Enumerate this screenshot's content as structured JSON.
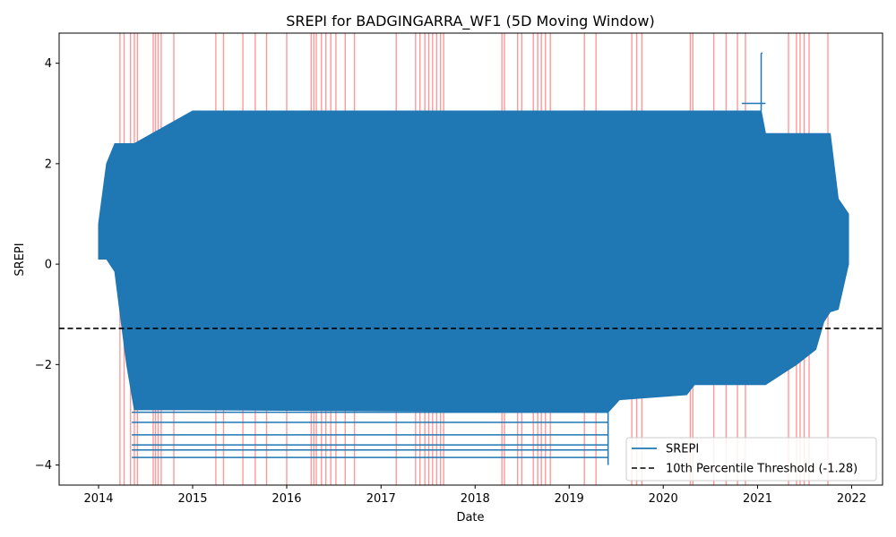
{
  "chart_data": {
    "type": "line",
    "title": "SREPI for BADGINGARRA_WF1 (5D Moving Window)",
    "xlabel": "Date",
    "ylabel": "SREPI",
    "xlim": [
      "2013-08-01",
      "2022-05-01"
    ],
    "ylim": [
      -4.4,
      4.6
    ],
    "x_ticks": [
      "2014-01-01",
      "2015-01-01",
      "2016-01-01",
      "2017-01-01",
      "2018-01-01",
      "2019-01-01",
      "2020-01-01",
      "2021-01-01",
      "2022-01-01"
    ],
    "x_tick_labels": [
      "2014",
      "2015",
      "2016",
      "2017",
      "2018",
      "2019",
      "2020",
      "2021",
      "2022"
    ],
    "y_ticks": [
      -4,
      -2,
      0,
      2,
      4
    ],
    "y_tick_labels": [
      "−4",
      "−2",
      "0",
      "2",
      "4"
    ],
    "threshold": {
      "value": -1.28,
      "label": "10th Percentile Threshold (-1.28)",
      "color": "#000000",
      "style": "dashed"
    },
    "series": [
      {
        "name": "SREPI",
        "color": "#1f77b4"
      }
    ],
    "srepi_band": [
      {
        "x": "2014-01-01",
        "low": 0.1,
        "high": 0.8
      },
      {
        "x": "2014-02-01",
        "low": 0.1,
        "high": 2.0
      },
      {
        "x": "2014-03-05",
        "low": -0.15,
        "high": 2.4
      },
      {
        "x": "2014-04-20",
        "low": -2.0,
        "high": 2.4
      },
      {
        "x": "2014-05-20",
        "low": -2.9,
        "high": 2.4
      },
      {
        "x": "2015-01-01",
        "low": -2.9,
        "high": 3.05
      },
      {
        "x": "2019-06-01",
        "low": -2.95,
        "high": 3.05
      },
      {
        "x": "2019-07-15",
        "low": -2.7,
        "high": 3.05
      },
      {
        "x": "2020-04-01",
        "low": -2.6,
        "high": 3.05
      },
      {
        "x": "2020-05-01",
        "low": -2.4,
        "high": 3.05
      },
      {
        "x": "2021-01-15",
        "low": -2.4,
        "high": 3.05
      },
      {
        "x": "2021-02-01",
        "low": -2.4,
        "high": 2.6
      },
      {
        "x": "2021-06-01",
        "low": -2.0,
        "high": 2.6
      },
      {
        "x": "2021-08-15",
        "low": -1.7,
        "high": 2.6
      },
      {
        "x": "2021-09-15",
        "low": -1.15,
        "high": 2.6
      },
      {
        "x": "2021-10-10",
        "low": -0.95,
        "high": 2.6
      },
      {
        "x": "2021-11-10",
        "low": -0.9,
        "high": 1.3
      },
      {
        "x": "2021-12-20",
        "low": 0.0,
        "high": 1.0
      }
    ],
    "srepi_lows": [
      {
        "from": "2014-05-10",
        "to": "2019-06-01",
        "value": -2.95
      },
      {
        "from": "2014-05-10",
        "to": "2019-06-01",
        "value": -3.15
      },
      {
        "from": "2014-05-10",
        "to": "2019-06-01",
        "value": -3.4
      },
      {
        "from": "2014-05-10",
        "to": "2019-06-01",
        "value": -3.6
      },
      {
        "from": "2014-05-10",
        "to": "2019-06-01",
        "value": -3.7
      },
      {
        "from": "2014-05-10",
        "to": "2019-06-01",
        "value": -3.85
      },
      {
        "from": "2014-05-15",
        "to": "2014-07-15",
        "value": -2.2
      },
      {
        "from": "2014-05-15",
        "to": "2014-07-01",
        "value": -2.45
      }
    ],
    "srepi_highs": [
      {
        "from": "2015-01-01",
        "to": "2018-01-01",
        "value": 2.7
      },
      {
        "from": "2020-11-01",
        "to": "2021-02-01",
        "value": 3.2
      },
      {
        "from": "2021-01-15",
        "to": "2021-01-20",
        "value": 4.2
      }
    ],
    "drought_periods": [
      "2014-03-25",
      "2014-04-10",
      "2014-05-05",
      "2014-05-20",
      "2014-06-01",
      "2014-08-01",
      "2014-08-10",
      "2014-08-20",
      "2014-09-01",
      "2014-10-20",
      "2015-04-01",
      "2015-05-01",
      "2015-07-15",
      "2015-09-01",
      "2015-10-15",
      "2016-01-01",
      "2016-04-05",
      "2016-04-15",
      "2016-04-25",
      "2016-05-15",
      "2016-06-01",
      "2016-06-20",
      "2016-07-10",
      "2016-08-15",
      "2016-09-20",
      "2017-03-01",
      "2017-05-15",
      "2017-06-01",
      "2017-06-20",
      "2017-07-05",
      "2017-07-20",
      "2017-08-05",
      "2017-08-20",
      "2017-09-01",
      "2018-04-15",
      "2018-04-25",
      "2018-06-15",
      "2018-07-01",
      "2018-08-15",
      "2018-09-01",
      "2018-09-15",
      "2018-10-01",
      "2018-10-20",
      "2019-03-01",
      "2019-04-15",
      "2019-09-01",
      "2019-09-20",
      "2019-10-10",
      "2020-04-15",
      "2020-04-25",
      "2020-07-15",
      "2020-09-01",
      "2020-10-15",
      "2020-11-15",
      "2021-05-01",
      "2021-06-01",
      "2021-06-15",
      "2021-07-01",
      "2021-07-20",
      "2021-10-01"
    ],
    "legend_position": "bottom-right",
    "legend": [
      {
        "label": "SREPI",
        "color": "#1f77b4",
        "style": "solid"
      },
      {
        "label": "10th Percentile Threshold (-1.28)",
        "color": "#000000",
        "style": "dashed"
      }
    ],
    "grid": false
  }
}
